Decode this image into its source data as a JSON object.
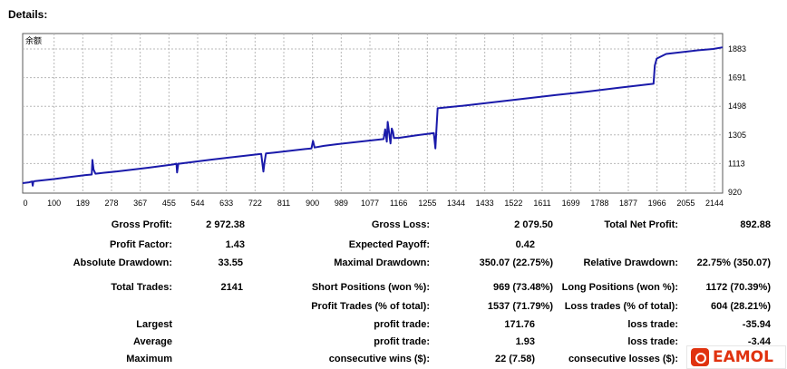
{
  "header": {
    "title": "Details:"
  },
  "colors": {
    "line": "#1a1aaa",
    "grid": "#b8b8b8",
    "border": "#5a5a5a",
    "watermark": "#e0320f"
  },
  "chart_data": {
    "type": "line",
    "legend": "余额",
    "x_ticks": [
      "0",
      "100",
      "189",
      "278",
      "367",
      "455",
      "544",
      "633",
      "722",
      "811",
      "900",
      "989",
      "1077",
      "1166",
      "1255",
      "1344",
      "1433",
      "1522",
      "1611",
      "1699",
      "1788",
      "1877",
      "1966",
      "2055",
      "2144"
    ],
    "y_ticks": [
      "1883",
      "1691",
      "1498",
      "1305",
      "1113",
      "920"
    ],
    "ylim": [
      920,
      1883
    ],
    "xlim": [
      0,
      2230
    ],
    "grid": true,
    "series": [
      {
        "x": [
          0,
          20,
          30,
          32,
          34,
          40,
          100,
          150,
          200,
          220,
          222,
          226,
          232,
          260,
          300,
          400,
          480,
          490,
          492,
          496,
          500,
          600,
          700,
          760,
          767,
          770,
          775,
          800,
          900,
          920,
          925,
          930,
          960,
          1000,
          1100,
          1150,
          1155,
          1160,
          1163,
          1172,
          1176,
          1180,
          1183,
          1200,
          1260,
          1300,
          1310,
          1315,
          1319,
          1322,
          1330,
          1400,
          1500,
          1600,
          1700,
          1800,
          1900,
          2000,
          2010,
          2014,
          2020,
          2050,
          2150,
          2200,
          2230
        ],
        "y": [
          980,
          985,
          990,
          965,
          990,
          993,
          1005,
          1017,
          1029,
          1032,
          1120,
          1062,
          1037,
          1043,
          1051,
          1073,
          1093,
          1098,
          1045,
          1098,
          1098,
          1122,
          1144,
          1157,
          1050,
          1100,
          1159,
          1164,
          1186,
          1190,
          1235,
          1195,
          1205,
          1215,
          1236,
          1246,
          1305,
          1230,
          1350,
          1220,
          1310,
          1288,
          1252,
          1254,
          1270,
          1280,
          1282,
          1190,
          1330,
          1432,
          1434,
          1447,
          1468,
          1490,
          1512,
          1533,
          1556,
          1578,
          1580,
          1690,
          1732,
          1760,
          1782,
          1790,
          1800
        ]
      }
    ]
  },
  "stats": {
    "gross_profit_label": "Gross Profit:",
    "gross_profit": "2 972.38",
    "gross_loss_label": "Gross Loss:",
    "gross_loss": "2 079.50",
    "total_net_profit_label": "Total Net Profit:",
    "total_net_profit": "892.88",
    "profit_factor_label": "Profit Factor:",
    "profit_factor": "1.43",
    "expected_payoff_label": "Expected Payoff:",
    "expected_payoff": "0.42",
    "absolute_drawdown_label": "Absolute Drawdown:",
    "absolute_drawdown": "33.55",
    "maximal_drawdown_label": "Maximal Drawdown:",
    "maximal_drawdown": "350.07 (22.75%)",
    "relative_drawdown_label": "Relative Drawdown:",
    "relative_drawdown": "22.75% (350.07)",
    "total_trades_label": "Total Trades:",
    "total_trades": "2141",
    "short_positions_label": "Short Positions (won %):",
    "short_positions": "969 (73.48%)",
    "long_positions_label": "Long Positions (won %):",
    "long_positions": "1172 (70.39%)",
    "profit_trades_label": "Profit Trades (% of total):",
    "profit_trades": "1537 (71.79%)",
    "loss_trades_label": "Loss trades (% of total):",
    "loss_trades": "604 (28.21%)",
    "largest_label": "Largest",
    "largest_profit_label": "profit trade:",
    "largest_profit": "171.76",
    "largest_loss_label": "loss trade:",
    "largest_loss": "-35.94",
    "average_label": "Average",
    "average_profit_label": "profit trade:",
    "average_profit": "1.93",
    "average_loss_label": "loss trade:",
    "average_loss": "-3.44",
    "maximum_label": "Maximum",
    "max_consec_wins_label": "consecutive wins ($):",
    "max_consec_wins": "22 (7.58)",
    "max_consec_losses_label": "consecutive losses ($):"
  },
  "watermark": {
    "icon": "eamol-logo-icon",
    "text": "EAMOL"
  }
}
